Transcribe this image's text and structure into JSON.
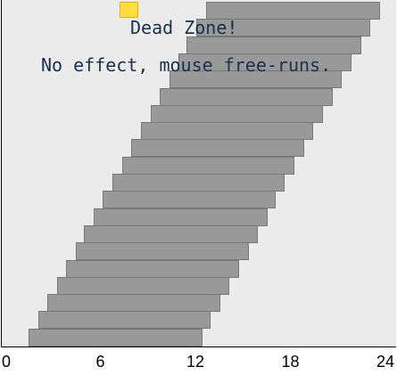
{
  "status": {
    "title": "Dead Zone!",
    "subtitle": "No effect, mouse free-runs."
  },
  "axis": {
    "min": 0,
    "max": 24,
    "ticks": [
      {
        "value": 0,
        "label": "0"
      },
      {
        "value": 6,
        "label": "6"
      },
      {
        "value": 12,
        "label": "12"
      },
      {
        "value": 18,
        "label": "18"
      },
      {
        "value": 24,
        "label": "24"
      }
    ]
  },
  "activity_bars": [
    {
      "start": 12.6,
      "end": 23.6
    },
    {
      "start": 12.0,
      "end": 23.0
    },
    {
      "start": 11.4,
      "end": 22.4
    },
    {
      "start": 10.9,
      "end": 21.8
    },
    {
      "start": 10.3,
      "end": 21.2
    },
    {
      "start": 9.7,
      "end": 20.6
    },
    {
      "start": 9.1,
      "end": 20.0
    },
    {
      "start": 8.5,
      "end": 19.4
    },
    {
      "start": 7.9,
      "end": 18.8
    },
    {
      "start": 7.3,
      "end": 18.2
    },
    {
      "start": 6.7,
      "end": 17.6
    },
    {
      "start": 6.1,
      "end": 17.0
    },
    {
      "start": 5.5,
      "end": 16.5
    },
    {
      "start": 4.9,
      "end": 15.9
    },
    {
      "start": 4.4,
      "end": 15.3
    },
    {
      "start": 3.8,
      "end": 14.7
    },
    {
      "start": 3.2,
      "end": 14.1
    },
    {
      "start": 2.6,
      "end": 13.5
    },
    {
      "start": 2.0,
      "end": 12.9
    },
    {
      "start": 1.4,
      "end": 12.4
    }
  ],
  "colors": {
    "background": "#ebebeb",
    "bar": "#999999",
    "marker": "#ffdf3c",
    "text": "#17324c"
  }
}
